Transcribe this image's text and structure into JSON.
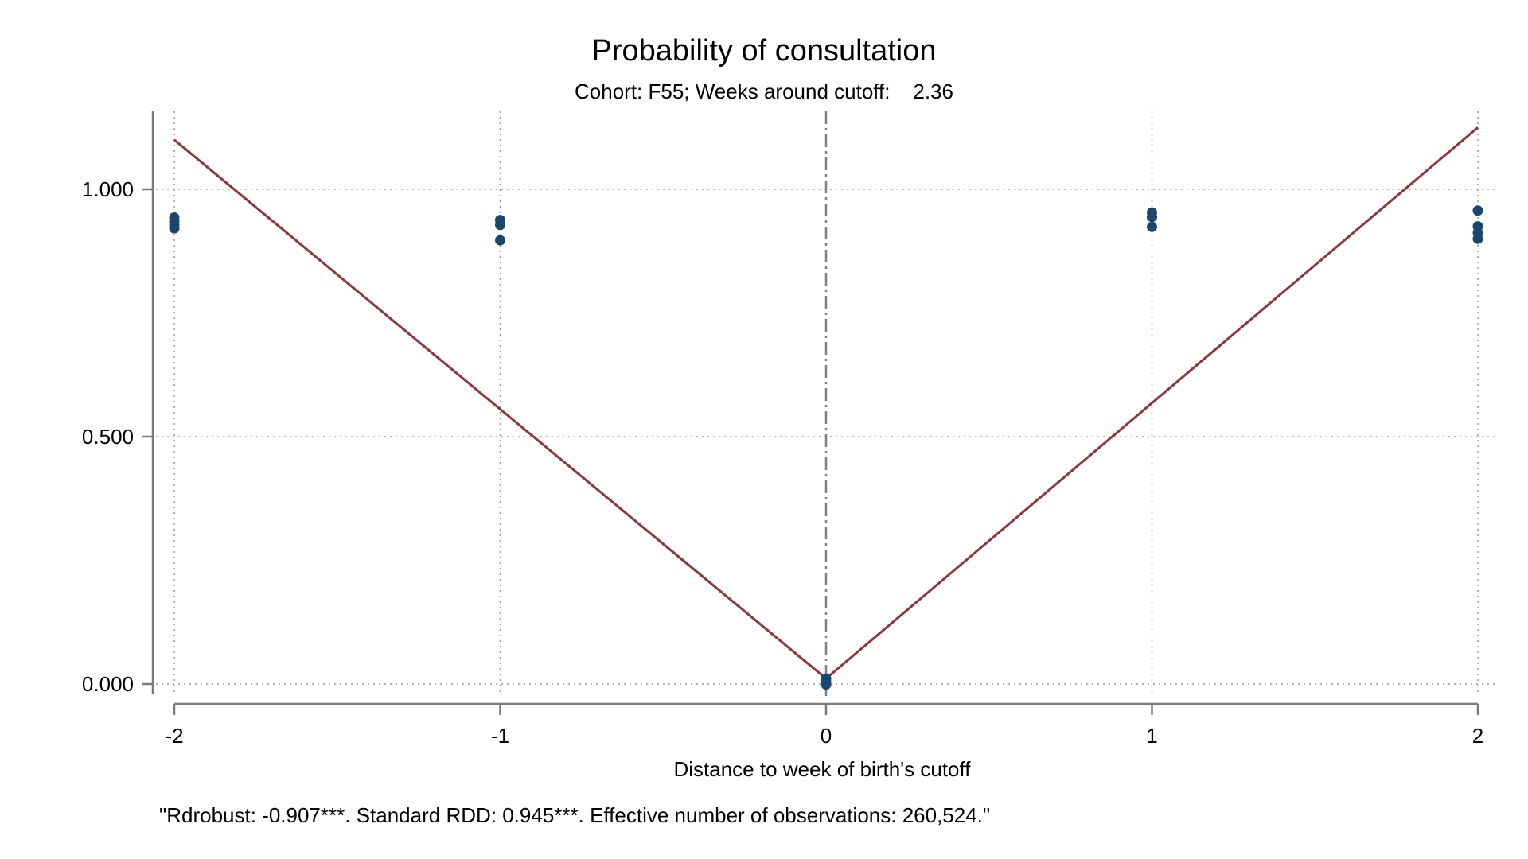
{
  "chart_data": {
    "type": "scatter",
    "title": "Probability of consultation",
    "subtitle": "Cohort: F55; Weeks around cutoff:    2.36",
    "xlabel": "Distance to week of birth's cutoff",
    "ylabel": "",
    "note": "\"Rdrobust: -0.907***. Standard RDD: 0.945***. Effective number of observations: 260,524.\"",
    "xlim": [
      -2,
      2
    ],
    "ylim": [
      0,
      1.1
    ],
    "x_ticks": [
      -2,
      -1,
      0,
      1,
      2
    ],
    "x_tick_labels": [
      "-2",
      "-1",
      "0",
      "1",
      "2"
    ],
    "y_ticks": [
      0,
      0.5,
      1.0
    ],
    "y_tick_labels": [
      "0.000",
      "0.500",
      "1.000"
    ],
    "grid": true,
    "cutoff": 0,
    "points": [
      {
        "x": -2,
        "y": 0.943
      },
      {
        "x": -2,
        "y": 0.935
      },
      {
        "x": -2,
        "y": 0.927
      },
      {
        "x": -2,
        "y": 0.921
      },
      {
        "x": -1,
        "y": 0.938
      },
      {
        "x": -1,
        "y": 0.928
      },
      {
        "x": -1,
        "y": 0.897
      },
      {
        "x": 0,
        "y": 0.011
      },
      {
        "x": 0,
        "y": 0.004
      },
      {
        "x": 0,
        "y": -0.001
      },
      {
        "x": 1,
        "y": 0.953
      },
      {
        "x": 1,
        "y": 0.944
      },
      {
        "x": 1,
        "y": 0.924
      },
      {
        "x": 2,
        "y": 0.957
      },
      {
        "x": 2,
        "y": 0.925
      },
      {
        "x": 2,
        "y": 0.912
      },
      {
        "x": 2,
        "y": 0.9
      }
    ],
    "fit_lines": [
      {
        "side": "left",
        "x": [
          -2,
          0
        ],
        "y": [
          1.1,
          0.011
        ]
      },
      {
        "side": "right",
        "x": [
          0,
          2
        ],
        "y": [
          0.011,
          1.125
        ]
      }
    ],
    "colors": {
      "points": "#1a476f",
      "fit": "#90353b",
      "cutoff": "#808080",
      "grid": "#9a9a9a",
      "axis": "#7a7a7a"
    }
  }
}
